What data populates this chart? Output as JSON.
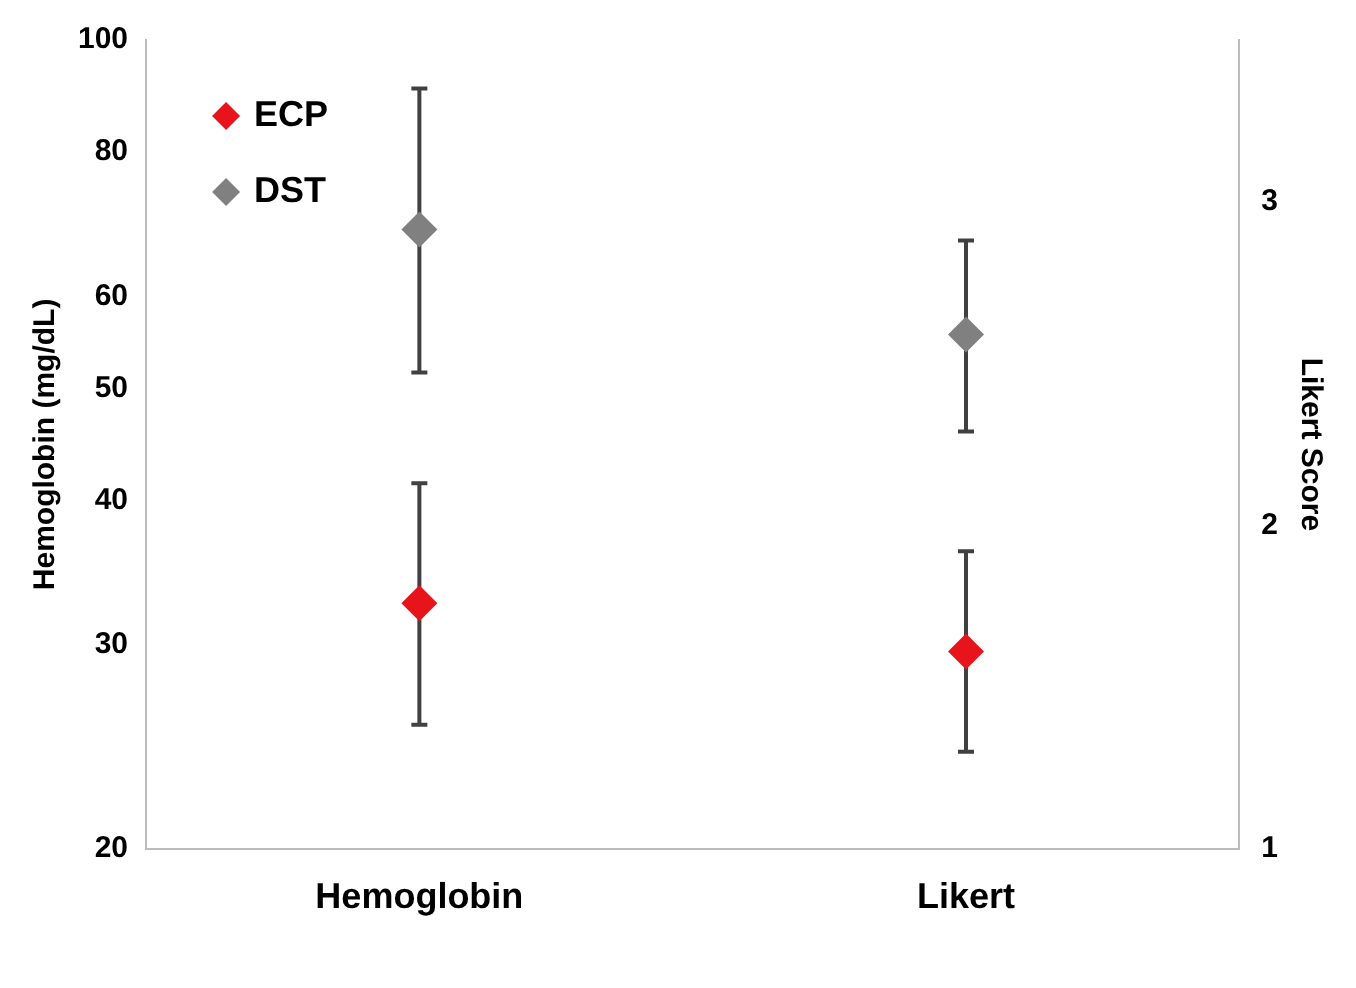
{
  "chart_data": {
    "type": "scatter",
    "categories": [
      "Hemoglobin",
      "Likert"
    ],
    "ylabel": "Hemoglobin (mg/dL)",
    "y2label": "Likert Score",
    "log": "y",
    "ylim": [
      20,
      100
    ],
    "yticks": [
      20,
      30,
      40,
      50,
      60,
      80,
      100
    ],
    "y2lim": [
      1,
      3.5
    ],
    "y2ticks": [
      1,
      2,
      3
    ],
    "grid": false,
    "legend": "top left",
    "marker": "diamond",
    "series": [
      {
        "name": "ECP",
        "color": "#e8141c",
        "values": [
          32.6,
          null
        ],
        "errors": [
          [
            25.6,
            41.4
          ],
          null
        ]
      },
      {
        "name": "DST",
        "color": "#808080",
        "values": [
          68.6,
          null
        ],
        "errors": [
          [
            51.6,
            90.8
          ],
          null
        ]
      },
      {
        "color": "#e8141c",
        "axis": "y2",
        "values": [
          null,
          1.61
        ],
        "errors": [
          null,
          [
            1.3,
            1.92
          ]
        ]
      },
      {
        "color": "#808080",
        "axis": "y2",
        "values": [
          null,
          2.59
        ],
        "errors": [
          null,
          [
            2.29,
            2.88
          ]
        ]
      }
    ]
  }
}
